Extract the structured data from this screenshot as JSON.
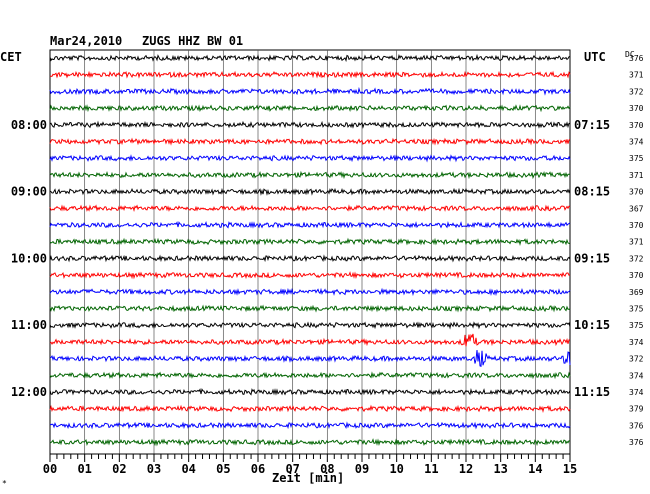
{
  "header": {
    "date": "Mar24,2010",
    "station": "ZUGS HHZ BW 01",
    "left_zone": "CET",
    "right_zone": "UTC",
    "dc_label": "DC"
  },
  "footer": {
    "x_axis_label": "Zeit [min]",
    "corner_mark": "*"
  },
  "chart_data": {
    "type": "line",
    "title": "Mar24,2010   ZUGS HHZ BW 01",
    "xlabel": "Zeit [min]",
    "xlim": [
      0,
      15
    ],
    "x_tick_labels": [
      "00",
      "01",
      "02",
      "03",
      "04",
      "05",
      "06",
      "07",
      "08",
      "09",
      "10",
      "11",
      "12",
      "13",
      "14",
      "15"
    ],
    "trace_colors": [
      "#000000",
      "#ff0000",
      "#0000ff",
      "#006400"
    ],
    "grid": true,
    "left_time_labels": [
      {
        "trace": 4,
        "text": "08:00"
      },
      {
        "trace": 8,
        "text": "09:00"
      },
      {
        "trace": 12,
        "text": "10:00"
      },
      {
        "trace": 16,
        "text": "11:00"
      },
      {
        "trace": 20,
        "text": "12:00"
      }
    ],
    "right_time_labels": [
      {
        "trace": 4,
        "text": "07:15"
      },
      {
        "trace": 8,
        "text": "08:15"
      },
      {
        "trace": 12,
        "text": "09:15"
      },
      {
        "trace": 16,
        "text": "10:15"
      },
      {
        "trace": 20,
        "text": "11:15"
      }
    ],
    "dc_offsets": [
      "376",
      "371",
      "372",
      "370",
      "370",
      "374",
      "375",
      "371",
      "370",
      "367",
      "370",
      "371",
      "372",
      "370",
      "369",
      "375",
      "375",
      "374",
      "372",
      "374",
      "374",
      "379",
      "376",
      "376"
    ],
    "events": [
      {
        "trace": 17,
        "minute": 12.1,
        "amplitude": 1.6
      },
      {
        "trace": 18,
        "minute": 12.4,
        "amplitude": 1.4
      },
      {
        "trace": 18,
        "minute": 15.0,
        "amplitude": 1.1
      }
    ]
  }
}
